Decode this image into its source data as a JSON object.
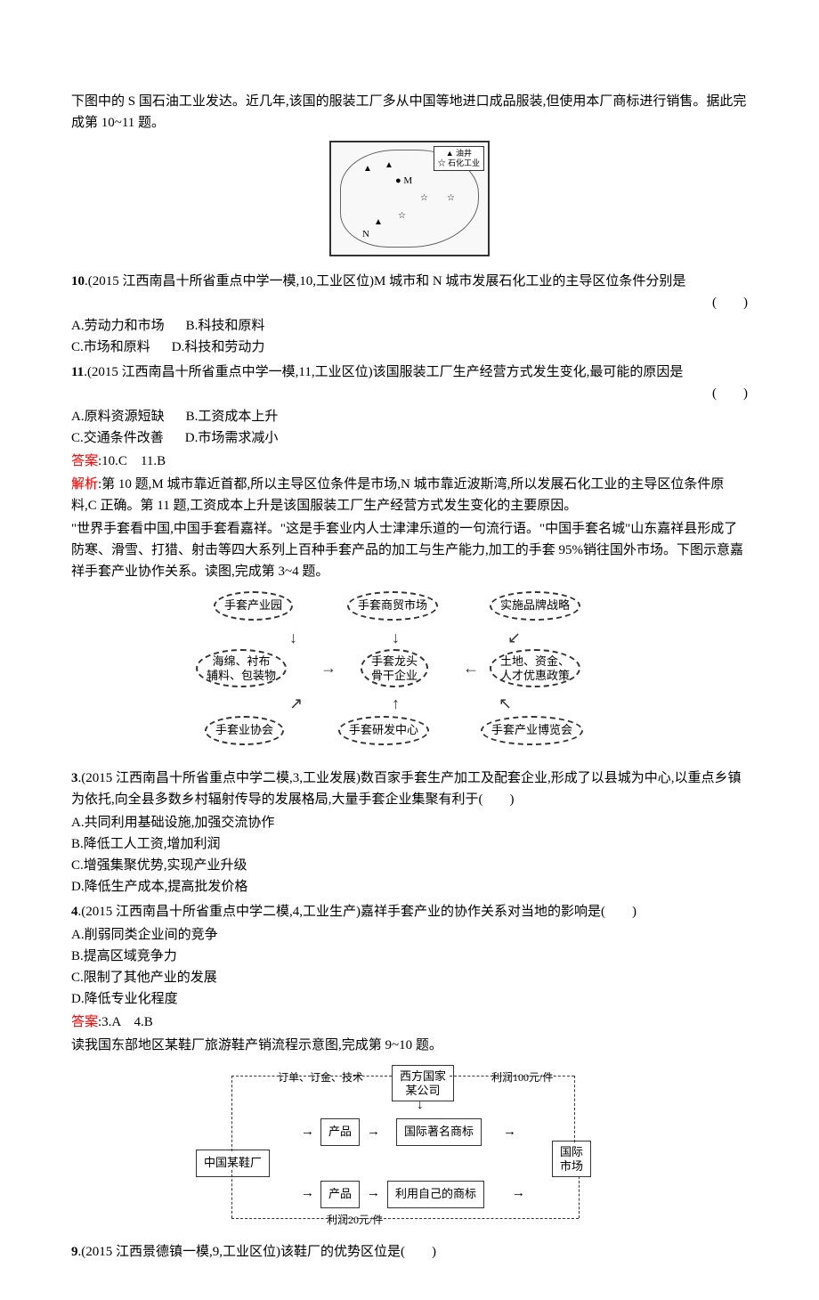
{
  "intro1": "下图中的 S 国石油工业发达。近几年,该国的服装工厂多从中国等地进口成品服装,但使用本厂商标进行销售。据此完成第 10~11 题。",
  "map": {
    "legend1": "▲ 油井",
    "legend2": "☆ 石化工业",
    "markM": "● M",
    "markN": "N"
  },
  "q10": {
    "num": "10",
    "source": ".(2015 江西南昌十所省重点中学一模,10,工业区位)M 城市和 N 城市发展石化工业的主导区位条件分别是",
    "paren": "(　　)",
    "optA": "A.劳动力和市场",
    "optB": "B.科技和原料",
    "optC": "C.市场和原料",
    "optD": "D.科技和劳动力"
  },
  "q11": {
    "num": "11",
    "source": ".(2015 江西南昌十所省重点中学一模,11,工业区位)该国服装工厂生产经营方式发生变化,最可能的原因是",
    "paren": "(　　)",
    "optA": "A.原料资源短缺",
    "optB": "B.工资成本上升",
    "optC": "C.交通条件改善",
    "optD": "D.市场需求减小"
  },
  "answer1": {
    "label": "答案",
    "text": ":10.C　11.B"
  },
  "explain1": {
    "label": "解析",
    "text": ":第 10 题,M 城市靠近首都,所以主导区位条件是市场,N 城市靠近波斯湾,所以发展石化工业的主导区位条件原料,C 正确。第 11 题,工资成本上升是该国服装工厂生产经营方式发生变化的主要原因。"
  },
  "intro2": "\"世界手套看中国,中国手套看嘉祥。\"这是手套业内人士津津乐道的一句流行语。\"中国手套名城\"山东嘉祥县形成了防寒、滑雪、打猎、射击等四大系列上百种手套产品的加工与生产能力,加工的手套 95%销往国外市场。下图示意嘉祥手套产业协作关系。读图,完成第 3~4 题。",
  "gloveNodes": {
    "n1": "手套产业园",
    "n2": "手套商贸市场",
    "n3": "实施品牌战略",
    "n4": "海绵、衬布\n辅料、包装物",
    "n5": "手套龙头\n骨干企业",
    "n6": "土地、资金、\n人才优惠政策",
    "n7": "手套业协会",
    "n8": "手套研发中心",
    "n9": "手套产业博览会"
  },
  "q3": {
    "num": "3",
    "source": ".(2015 江西南昌十所省重点中学二模,3,工业发展)数百家手套生产加工及配套企业,形成了以县城为中心,以重点乡镇为依托,向全县多数乡村辐射传导的发展格局,大量手套企业集聚有利于(　　)",
    "optA": "A.共同利用基础设施,加强交流协作",
    "optB": "B.降低工人工资,增加利润",
    "optC": "C.增强集聚优势,实现产业升级",
    "optD": "D.降低生产成本,提高批发价格"
  },
  "q4": {
    "num": "4",
    "source": ".(2015 江西南昌十所省重点中学二模,4,工业生产)嘉祥手套产业的协作关系对当地的影响是(　　)",
    "optA": "A.削弱同类企业间的竞争",
    "optB": "B.提高区域竞争力",
    "optC": "C.限制了其他产业的发展",
    "optD": "D.降低专业化程度"
  },
  "answer2": {
    "label": "答案",
    "text": ":3.A　4.B"
  },
  "intro3": "读我国东部地区某鞋厂旅游鞋产销流程示意图,完成第 9~10 题。",
  "shoeDiagram": {
    "b1": "西方国家\n某公司",
    "b2": "中国某鞋厂",
    "b3": "产品",
    "b4": "产品",
    "b5": "国际著名商标",
    "b6": "利用自己的商标",
    "b7": "国际\n市场",
    "l1": "订单、订金、技术",
    "l2": "利润100元/件",
    "l3": "利润20元/件"
  },
  "q9": {
    "num": "9",
    "source": ".(2015 江西景德镇一模,9,工业区位)该鞋厂的优势区位是(　　)"
  }
}
